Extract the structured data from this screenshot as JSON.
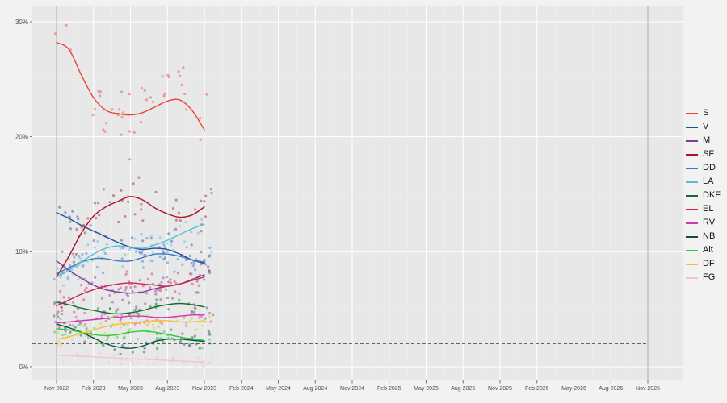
{
  "chart_data": {
    "type": "scatter",
    "description": "Opinion polling trend chart: smoothed party support lines with semi-transparent poll scatter points, ggplot-style grey panel",
    "x_unit": "months since Nov 2022",
    "x_ticks": [
      {
        "label": "Nov 2022",
        "month": 0
      },
      {
        "label": "Feb 2023",
        "month": 3
      },
      {
        "label": "May 2023",
        "month": 6
      },
      {
        "label": "Aug 2023",
        "month": 9
      },
      {
        "label": "Nov 2023",
        "month": 12
      },
      {
        "label": "Feb 2024",
        "month": 15
      },
      {
        "label": "May 2024",
        "month": 18
      },
      {
        "label": "Aug 2024",
        "month": 21
      },
      {
        "label": "Nov 2024",
        "month": 24
      },
      {
        "label": "Feb 2025",
        "month": 27
      },
      {
        "label": "May 2025",
        "month": 30
      },
      {
        "label": "Aug 2025",
        "month": 33
      },
      {
        "label": "Nov 2025",
        "month": 36
      },
      {
        "label": "Feb 2026",
        "month": 39
      },
      {
        "label": "May 2026",
        "month": 42
      },
      {
        "label": "Aug 2026",
        "month": 45
      },
      {
        "label": "Nov 2026",
        "month": 48
      }
    ],
    "y_ticks": [
      {
        "label": "0%",
        "value": 0
      },
      {
        "label": "10%",
        "value": 10
      },
      {
        "label": "20%",
        "value": 20
      },
      {
        "label": "30%",
        "value": 30
      }
    ],
    "threshold_value": 2,
    "marker_months": [
      0,
      48
    ],
    "series_months": [
      0,
      1,
      2,
      3,
      4,
      5,
      6,
      7,
      8,
      9,
      10,
      11,
      12
    ],
    "series": [
      {
        "name": "S",
        "color": "#E8443A",
        "values": [
          28.2,
          27.6,
          25.4,
          23.4,
          22.3,
          22.0,
          21.9,
          22.1,
          22.6,
          23.1,
          23.2,
          22.3,
          20.6
        ]
      },
      {
        "name": "V",
        "color": "#1F4E9C",
        "values": [
          13.4,
          12.9,
          12.3,
          11.8,
          11.3,
          10.8,
          10.4,
          10.2,
          10.3,
          10.2,
          9.8,
          9.3,
          9.0
        ]
      },
      {
        "name": "M",
        "color": "#7D3C98",
        "values": [
          9.2,
          8.4,
          7.7,
          7.1,
          6.7,
          6.5,
          6.4,
          6.5,
          6.8,
          7.0,
          7.2,
          7.6,
          8.0
        ]
      },
      {
        "name": "SF",
        "color": "#AE1125",
        "values": [
          7.8,
          9.6,
          11.6,
          13.1,
          13.9,
          14.4,
          14.8,
          14.5,
          13.8,
          13.3,
          13.0,
          13.2,
          13.9
        ]
      },
      {
        "name": "DD",
        "color": "#3E78C8",
        "values": [
          8.1,
          8.6,
          9.1,
          9.4,
          9.4,
          9.2,
          9.2,
          9.5,
          9.8,
          9.8,
          9.6,
          9.3,
          9.1
        ]
      },
      {
        "name": "LA",
        "color": "#52BFDA",
        "values": [
          7.8,
          8.4,
          9.1,
          9.8,
          10.3,
          10.5,
          10.4,
          10.3,
          10.6,
          11.0,
          11.5,
          12.0,
          12.4
        ]
      },
      {
        "name": "DKF",
        "color": "#146C35",
        "values": [
          5.6,
          5.4,
          5.1,
          4.9,
          4.7,
          4.6,
          4.7,
          4.9,
          5.2,
          5.4,
          5.5,
          5.4,
          5.2
        ]
      },
      {
        "name": "EL",
        "color": "#D31F55",
        "values": [
          5.3,
          5.8,
          6.3,
          6.7,
          7.0,
          7.2,
          7.3,
          7.2,
          7.1,
          7.0,
          7.2,
          7.5,
          7.8
        ]
      },
      {
        "name": "RV",
        "color": "#D636AC",
        "values": [
          3.8,
          3.9,
          4.0,
          4.1,
          4.2,
          4.3,
          4.4,
          4.4,
          4.3,
          4.3,
          4.4,
          4.5,
          4.5
        ]
      },
      {
        "name": "NB",
        "color": "#0B4F46",
        "values": [
          3.7,
          3.4,
          3.0,
          2.5,
          2.0,
          1.7,
          1.6,
          1.8,
          2.2,
          2.4,
          2.4,
          2.3,
          2.2
        ]
      },
      {
        "name": "Alt",
        "color": "#27CC33",
        "values": [
          3.3,
          3.2,
          3.0,
          2.8,
          2.7,
          2.8,
          3.0,
          3.1,
          3.0,
          2.8,
          2.6,
          2.4,
          2.3
        ]
      },
      {
        "name": "DF",
        "color": "#EDC62F",
        "values": [
          2.4,
          2.6,
          2.9,
          3.2,
          3.5,
          3.7,
          3.8,
          3.9,
          4.0,
          4.0,
          3.9,
          3.9,
          4.0
        ]
      },
      {
        "name": "FG",
        "color": "#F2C4CE",
        "values": [
          1.0,
          0.95,
          0.9,
          0.85,
          0.8,
          0.75,
          0.7,
          0.65,
          0.6,
          0.55,
          0.5,
          0.45,
          0.4
        ]
      }
    ],
    "scatter": {
      "per_series": 44,
      "alpha": 0.45,
      "radius": 1.6,
      "seed": 7
    },
    "colors": {
      "outer_bg": "#F2F2F2",
      "panel_bg": "#E8E8E8",
      "grid_major": "#FFFFFF",
      "grid_minor": "#EFEFEF",
      "marker_line": "#ABABAB",
      "threshold_color": "#3A3A3A",
      "tick_text": "#4D4D4D",
      "tick_mark": "#555555"
    }
  }
}
